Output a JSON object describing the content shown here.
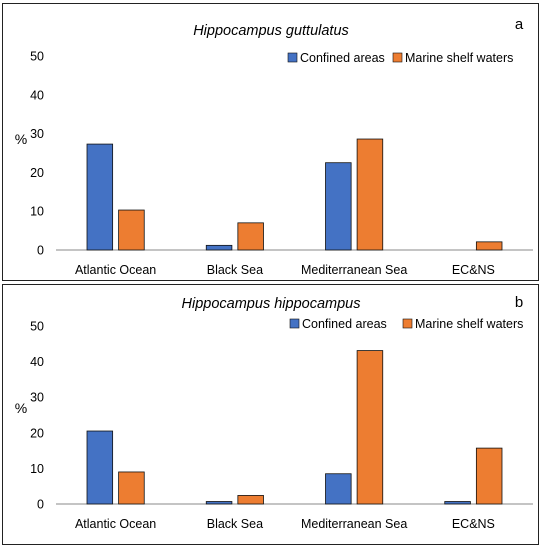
{
  "chart_data": [
    {
      "type": "bar",
      "title": "Hippocampus guttulatus",
      "panel_label": "a",
      "ylabel": "%",
      "xlabel": "",
      "ylim": [
        0,
        50
      ],
      "yticks": [
        "0",
        "10",
        "20",
        "30",
        "40",
        "50"
      ],
      "categories": [
        "Atlantic Ocean",
        "Black Sea",
        "Mediterranean Sea",
        "EC&NS"
      ],
      "series": [
        {
          "name": "Confined areas",
          "color": "#4472C4",
          "values": [
            27.3,
            1.2,
            22.5,
            0
          ]
        },
        {
          "name": "Marine shelf waters",
          "color": "#ED7D31",
          "values": [
            10.3,
            7.0,
            28.6,
            2.1
          ]
        }
      ],
      "legend_position": "top-right",
      "grid": false
    },
    {
      "type": "bar",
      "title": "Hippocampus hippocampus",
      "panel_label": "b",
      "ylabel": "%",
      "xlabel": "",
      "ylim": [
        0,
        50
      ],
      "yticks": [
        "0",
        "10",
        "20",
        "30",
        "40",
        "50"
      ],
      "categories": [
        "Atlantic Ocean",
        "Black Sea",
        "Mediterranean Sea",
        "EC&NS"
      ],
      "series": [
        {
          "name": "Confined areas",
          "color": "#4472C4",
          "values": [
            20.5,
            0.7,
            8.5,
            0.7
          ]
        },
        {
          "name": "Marine shelf waters",
          "color": "#ED7D31",
          "values": [
            9.0,
            2.4,
            43.1,
            15.7
          ]
        }
      ],
      "legend_position": "top-right",
      "grid": false
    }
  ]
}
